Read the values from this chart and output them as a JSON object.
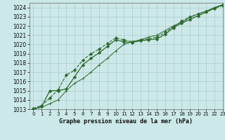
{
  "title": "Graphe pression niveau de la mer (hPa)",
  "background_color": "#cce8e8",
  "grid_color": "#aacccc",
  "line_color": "#2d6a2d",
  "marker_color": "#2d6a2d",
  "xlim": [
    -0.5,
    23
  ],
  "ylim": [
    1013,
    1024.5
  ],
  "xticks": [
    0,
    1,
    2,
    3,
    4,
    5,
    6,
    7,
    8,
    9,
    10,
    11,
    12,
    13,
    14,
    15,
    16,
    17,
    18,
    19,
    20,
    21,
    22,
    23
  ],
  "yticks": [
    1013,
    1014,
    1015,
    1016,
    1017,
    1018,
    1019,
    1020,
    1021,
    1022,
    1023,
    1024
  ],
  "series1_x": [
    0,
    1,
    2,
    3,
    4,
    5,
    6,
    7,
    8,
    9,
    10,
    11,
    12,
    13,
    14,
    15,
    16,
    17,
    18,
    19,
    20,
    21,
    22,
    23
  ],
  "series1_y": [
    1013.1,
    1013.4,
    1014.2,
    1015.1,
    1016.7,
    1017.2,
    1018.3,
    1019.0,
    1019.5,
    1020.1,
    1020.7,
    1020.5,
    1020.3,
    1020.5,
    1020.6,
    1020.8,
    1021.3,
    1021.9,
    1022.5,
    1023.0,
    1023.3,
    1023.6,
    1023.9,
    1024.2
  ],
  "series2_x": [
    0,
    1,
    2,
    3,
    4,
    5,
    6,
    7,
    8,
    9,
    10,
    11,
    12,
    13,
    14,
    15,
    16,
    17,
    18,
    19,
    20,
    21,
    22,
    23
  ],
  "series2_y": [
    1013.0,
    1013.3,
    1015.0,
    1015.0,
    1015.2,
    1016.5,
    1017.8,
    1018.5,
    1019.1,
    1019.8,
    1020.5,
    1020.3,
    1020.2,
    1020.4,
    1020.5,
    1020.6,
    1021.1,
    1021.8,
    1022.3,
    1022.7,
    1023.1,
    1023.5,
    1023.9,
    1024.3
  ],
  "series3_x": [
    0,
    1,
    2,
    3,
    4,
    5,
    6,
    7,
    8,
    9,
    10,
    11,
    12,
    13,
    14,
    15,
    16,
    17,
    18,
    19,
    20,
    21,
    22,
    23
  ],
  "series3_y": [
    1013.0,
    1013.2,
    1013.6,
    1014.0,
    1015.0,
    1015.8,
    1016.3,
    1017.0,
    1017.8,
    1018.5,
    1019.3,
    1020.0,
    1020.3,
    1020.5,
    1020.8,
    1021.0,
    1021.5,
    1022.0,
    1022.4,
    1022.9,
    1023.3,
    1023.6,
    1024.0,
    1024.3
  ]
}
